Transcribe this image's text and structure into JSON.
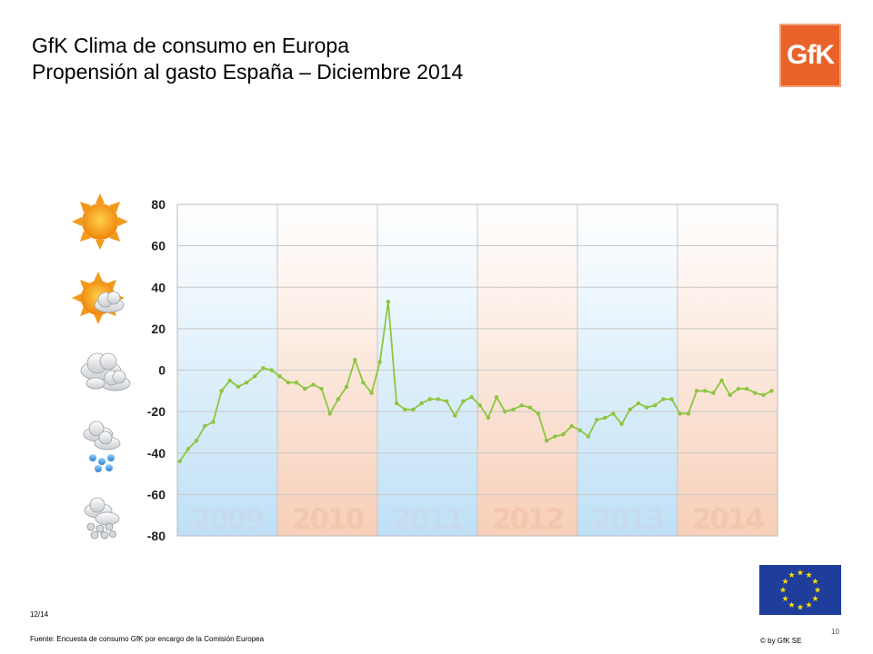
{
  "header": {
    "title_line1": "GfK Clima de consumo en Europa",
    "title_line2": "Propensión al gasto España – Diciembre 2014",
    "logo_text": "GfK"
  },
  "colors": {
    "line": "#8cc63f",
    "blue_band": "#cfe6f7",
    "orange_band": "#f8d6c4",
    "logo": "#e8622a",
    "eu_flag": "#1f3d9a",
    "eu_stars": "#ffdd00"
  },
  "icons": [
    "sun-icon",
    "sun-cloud-icon",
    "cloudy-icon",
    "rain-icon",
    "snow-icon"
  ],
  "chart_data": {
    "type": "line",
    "title": "",
    "xlabel": "",
    "ylabel": "",
    "ylim": [
      -80,
      80
    ],
    "y_ticks": [
      "80",
      "60",
      "40",
      "20",
      "0",
      "-20",
      "-40",
      "-60",
      "-80"
    ],
    "year_labels": [
      "2009",
      "2010",
      "2011",
      "2012",
      "2013",
      "2014"
    ],
    "x_start": "2009-01",
    "grid": true,
    "series": [
      {
        "values": [
          -44,
          -38,
          -34,
          -27,
          -25,
          -10,
          -5,
          -8,
          -6,
          -3,
          1,
          0,
          -3,
          -6,
          -6,
          -9,
          -7,
          -9,
          -21,
          -14,
          -8,
          5,
          -6,
          -11,
          4,
          33,
          -16,
          -19,
          -19,
          -16,
          -14,
          -14,
          -15,
          -22,
          -15,
          -13,
          -17,
          -23,
          -13,
          -20,
          -19,
          -17,
          -18,
          -21,
          -34,
          -32,
          -31,
          -27,
          -29,
          -32,
          -24,
          -23,
          -21,
          -26,
          -19,
          -16,
          -18,
          -17,
          -14,
          -14,
          -21,
          -21,
          -10,
          -10,
          -11,
          -5,
          -12,
          -9,
          -9,
          -11,
          -12,
          -10
        ]
      }
    ]
  },
  "footer": {
    "date": "12/14",
    "source": "Fuente: Encuesta de consumo GfK por encargo de la Comisión Europea",
    "copyright": "© by GfK SE",
    "page_number": "10"
  }
}
